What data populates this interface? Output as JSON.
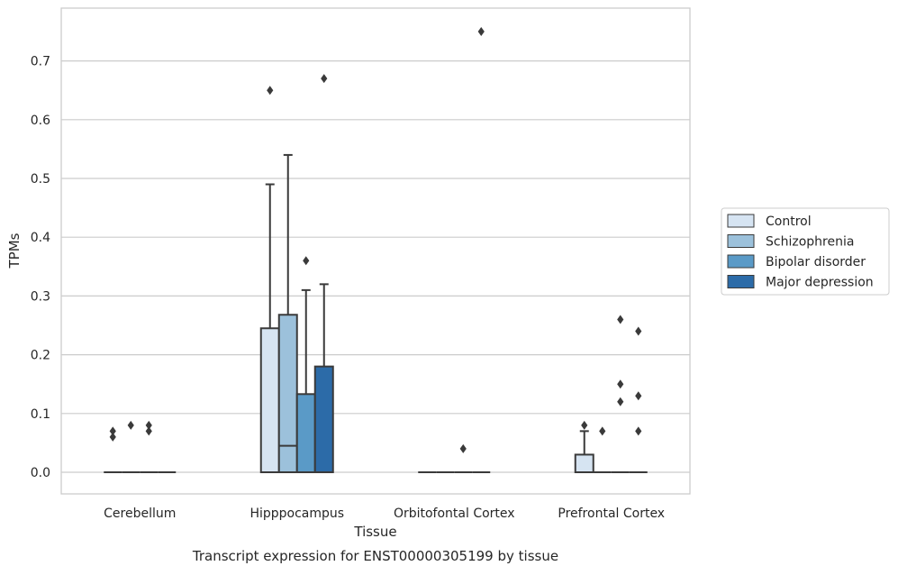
{
  "chart_data": {
    "type": "box",
    "title": "",
    "caption": "Transcript expression for ENST00000305199 by tissue",
    "xlabel": "Tissue",
    "ylabel": "TPMs",
    "ylim": [
      -0.037,
      0.8
    ],
    "yticks": [
      0.0,
      0.1,
      0.2,
      0.3,
      0.4,
      0.5,
      0.6,
      0.7
    ],
    "ytick_labels": [
      "0.0",
      "0.1",
      "0.2",
      "0.3",
      "0.4",
      "0.5",
      "0.6",
      "0.7"
    ],
    "grid": "horizontal",
    "legend_position": "right",
    "categories": [
      "Cerebellum",
      "Hipppocampus",
      "Orbitofontal Cortex",
      "Prefrontal Cortex"
    ],
    "series": [
      {
        "name": "Control",
        "color": "#d6e4f2",
        "boxes": [
          {
            "q1": 0.0,
            "median": 0.0,
            "q3": 0.0,
            "whisker_low": 0.0,
            "whisker_high": 0.0,
            "outliers": [
              0.06,
              0.07
            ]
          },
          {
            "q1": 0.0,
            "median": 0.0,
            "q3": 0.245,
            "whisker_low": 0.0,
            "whisker_high": 0.49,
            "outliers": [
              0.65
            ]
          },
          {
            "q1": 0.0,
            "median": 0.0,
            "q3": 0.0,
            "whisker_low": 0.0,
            "whisker_high": 0.0,
            "outliers": []
          },
          {
            "q1": 0.0,
            "median": 0.0,
            "q3": 0.03,
            "whisker_low": 0.0,
            "whisker_high": 0.07,
            "outliers": [
              0.08
            ]
          }
        ]
      },
      {
        "name": "Schizophrenia",
        "color": "#9cc1db",
        "boxes": [
          {
            "q1": 0.0,
            "median": 0.0,
            "q3": 0.0,
            "whisker_low": 0.0,
            "whisker_high": 0.0,
            "outliers": [
              0.08
            ]
          },
          {
            "q1": 0.0,
            "median": 0.045,
            "q3": 0.268,
            "whisker_low": 0.0,
            "whisker_high": 0.54,
            "outliers": []
          },
          {
            "q1": 0.0,
            "median": 0.0,
            "q3": 0.0,
            "whisker_low": 0.0,
            "whisker_high": 0.0,
            "outliers": []
          },
          {
            "q1": 0.0,
            "median": 0.0,
            "q3": 0.0,
            "whisker_low": 0.0,
            "whisker_high": 0.0,
            "outliers": [
              0.07
            ]
          }
        ]
      },
      {
        "name": "Bipolar disorder",
        "color": "#5a9ac7",
        "boxes": [
          {
            "q1": 0.0,
            "median": 0.0,
            "q3": 0.0,
            "whisker_low": 0.0,
            "whisker_high": 0.0,
            "outliers": [
              0.07,
              0.08
            ]
          },
          {
            "q1": 0.0,
            "median": 0.0,
            "q3": 0.133,
            "whisker_low": 0.0,
            "whisker_high": 0.31,
            "outliers": [
              0.36
            ]
          },
          {
            "q1": 0.0,
            "median": 0.0,
            "q3": 0.0,
            "whisker_low": 0.0,
            "whisker_high": 0.0,
            "outliers": [
              0.04
            ]
          },
          {
            "q1": 0.0,
            "median": 0.0,
            "q3": 0.0,
            "whisker_low": 0.0,
            "whisker_high": 0.0,
            "outliers": [
              0.12,
              0.15,
              0.26
            ]
          }
        ]
      },
      {
        "name": "Major depression",
        "color": "#2c6ba8",
        "boxes": [
          {
            "q1": 0.0,
            "median": 0.0,
            "q3": 0.0,
            "whisker_low": 0.0,
            "whisker_high": 0.0,
            "outliers": []
          },
          {
            "q1": 0.0,
            "median": 0.0,
            "q3": 0.18,
            "whisker_low": 0.0,
            "whisker_high": 0.32,
            "outliers": [
              0.67
            ]
          },
          {
            "q1": 0.0,
            "median": 0.0,
            "q3": 0.0,
            "whisker_low": 0.0,
            "whisker_high": 0.0,
            "outliers": [
              0.75
            ]
          },
          {
            "q1": 0.0,
            "median": 0.0,
            "q3": 0.0,
            "whisker_low": 0.0,
            "whisker_high": 0.0,
            "outliers": [
              0.07,
              0.13,
              0.24
            ]
          }
        ]
      }
    ]
  },
  "colors": {
    "grid": "#cccccc",
    "frame": "#cccccc",
    "box_edge": "#3a3a3a",
    "text": "#262626"
  }
}
